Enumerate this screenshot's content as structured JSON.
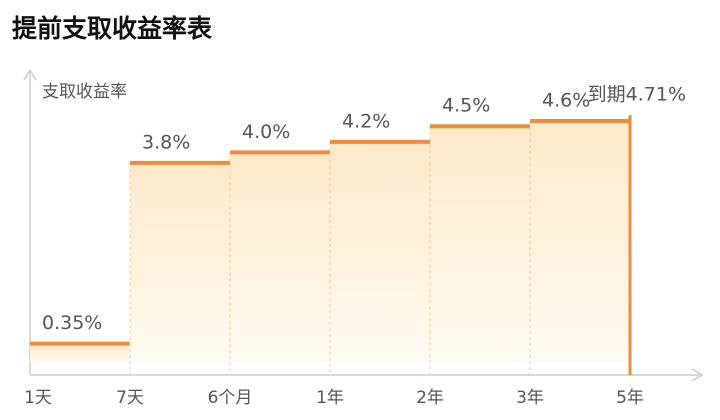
{
  "chart_data": {
    "type": "step",
    "title": "提前支取收益率表",
    "y_label": "支取收益率",
    "categories": [
      "1天",
      "7天",
      "6个月",
      "1年",
      "2年",
      "3年",
      "5年"
    ],
    "values": [
      0.35,
      3.8,
      4.0,
      4.2,
      4.5,
      4.6,
      4.71
    ],
    "value_labels": [
      "0.35%",
      "3.8%",
      "4.0%",
      "4.2%",
      "4.5%",
      "4.6%",
      "到期4.71%"
    ],
    "color": "#f08a3c",
    "ylim": [
      0,
      5
    ]
  }
}
